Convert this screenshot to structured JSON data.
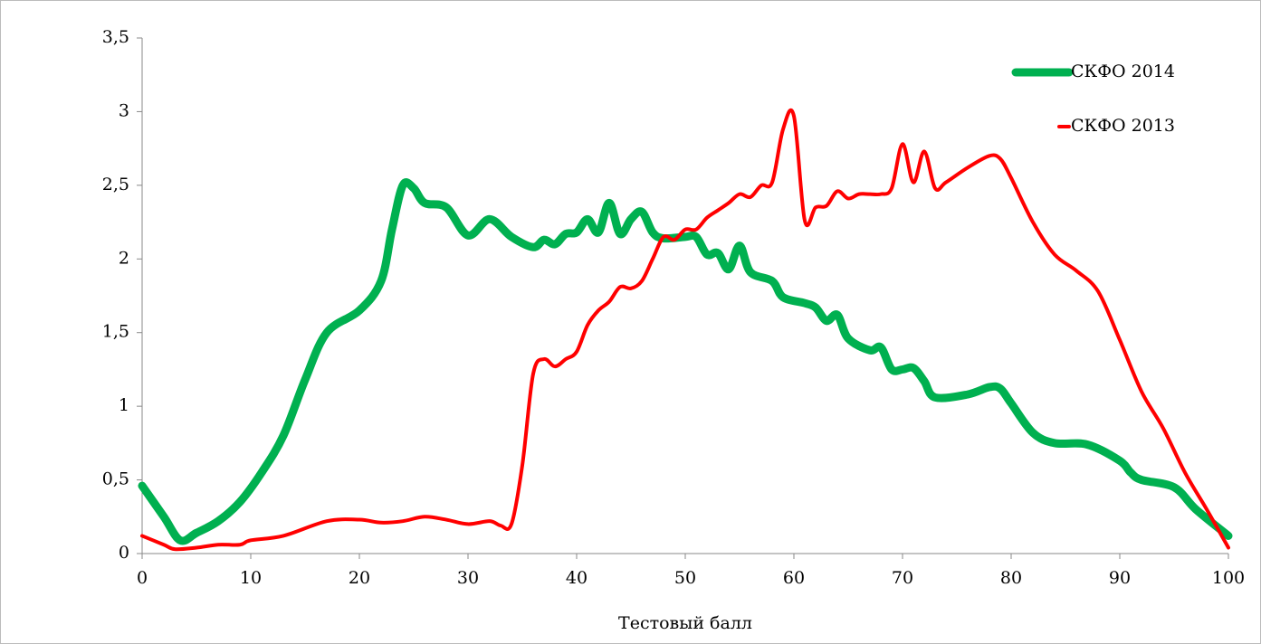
{
  "chart_data": {
    "type": "line",
    "xlabel": "Тестовый балл",
    "xlim": [
      0,
      100
    ],
    "xticks": [
      0,
      10,
      20,
      30,
      40,
      50,
      60,
      70,
      80,
      90,
      100
    ],
    "ylim": [
      0,
      3.5
    ],
    "yticks": [
      0,
      {
        "value": 0.5,
        "label": "0,5"
      },
      1,
      {
        "value": 1.5,
        "label": "1,5"
      },
      2,
      {
        "value": 2.5,
        "label": "2,5"
      },
      3,
      {
        "value": 3.5,
        "label": "3,5"
      }
    ],
    "legend": "top-right",
    "series": [
      {
        "name": "СКФО 2014",
        "color": "#00b050",
        "x": [
          0,
          2,
          3.5,
          5,
          7,
          9,
          11,
          13,
          15,
          17,
          20,
          22,
          23,
          24,
          25,
          26,
          28,
          30,
          32,
          34,
          36,
          37,
          38,
          39,
          40,
          41,
          42,
          43,
          44,
          45,
          46,
          47,
          48,
          50,
          51,
          52,
          53,
          54,
          55,
          56,
          58,
          59,
          61,
          62,
          63,
          64,
          65,
          67,
          68,
          69,
          70,
          71,
          72,
          73,
          76,
          78,
          79,
          80,
          82,
          84,
          87,
          90,
          91,
          92,
          95,
          97,
          100
        ],
        "values": [
          0.46,
          0.25,
          0.09,
          0.14,
          0.22,
          0.35,
          0.55,
          0.8,
          1.18,
          1.5,
          1.65,
          1.85,
          2.2,
          2.5,
          2.48,
          2.38,
          2.35,
          2.16,
          2.27,
          2.15,
          2.08,
          2.13,
          2.1,
          2.17,
          2.18,
          2.27,
          2.18,
          2.38,
          2.17,
          2.27,
          2.32,
          2.18,
          2.14,
          2.15,
          2.15,
          2.03,
          2.04,
          1.93,
          2.09,
          1.91,
          1.85,
          1.74,
          1.7,
          1.67,
          1.58,
          1.62,
          1.46,
          1.38,
          1.4,
          1.25,
          1.25,
          1.26,
          1.17,
          1.06,
          1.08,
          1.13,
          1.12,
          1.02,
          0.82,
          0.75,
          0.74,
          0.63,
          0.55,
          0.5,
          0.45,
          0.3,
          0.12
        ]
      },
      {
        "name": "СКФО 2013",
        "color": "#ff0000",
        "x": [
          0,
          2,
          3,
          5,
          7,
          9,
          10,
          13,
          17,
          20,
          22,
          24,
          26,
          28,
          30,
          32,
          33,
          34,
          35,
          36,
          37,
          38,
          39,
          40,
          41,
          42,
          43,
          44,
          45,
          46,
          47,
          48,
          49,
          50,
          51,
          52,
          53,
          54,
          55,
          56,
          57,
          58,
          59,
          60,
          61,
          62,
          63,
          64,
          65,
          66,
          67,
          68,
          69,
          70,
          71,
          72,
          73,
          74,
          76,
          78,
          79,
          80,
          82,
          84,
          86,
          88,
          90,
          92,
          94,
          96,
          98,
          100
        ],
        "values": [
          0.12,
          0.06,
          0.03,
          0.04,
          0.06,
          0.06,
          0.09,
          0.12,
          0.22,
          0.23,
          0.21,
          0.22,
          0.25,
          0.23,
          0.2,
          0.22,
          0.19,
          0.2,
          0.6,
          1.22,
          1.32,
          1.27,
          1.32,
          1.37,
          1.55,
          1.65,
          1.71,
          1.81,
          1.8,
          1.85,
          2.0,
          2.15,
          2.13,
          2.2,
          2.2,
          2.28,
          2.33,
          2.38,
          2.44,
          2.42,
          2.5,
          2.52,
          2.88,
          2.97,
          2.26,
          2.35,
          2.36,
          2.46,
          2.41,
          2.44,
          2.44,
          2.44,
          2.48,
          2.78,
          2.52,
          2.73,
          2.48,
          2.52,
          2.62,
          2.7,
          2.68,
          2.55,
          2.25,
          2.03,
          1.92,
          1.78,
          1.45,
          1.1,
          0.85,
          0.55,
          0.3,
          0.04
        ]
      }
    ]
  }
}
